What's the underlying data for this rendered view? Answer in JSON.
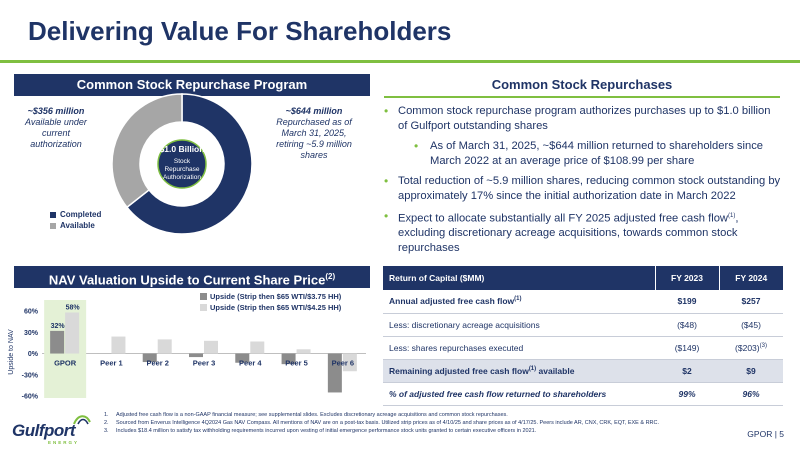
{
  "title": "Delivering Value For Shareholders",
  "repurchase_program": {
    "header": "Common Stock Repurchase Program",
    "available_note": {
      "line1": "~$356 million",
      "line2": "Available under",
      "line3": "current",
      "line4": "authorization"
    },
    "completed_note": {
      "line1": "~$644 million",
      "line2": "Repurchased as of",
      "line3": "March 31, 2025,",
      "line4": "retiring ~5.9 million",
      "line5": "shares"
    },
    "center_value": "$1.0 Billion",
    "center_line1": "Stock",
    "center_line2": "Repurchase",
    "center_line3": "Authorization",
    "legend": [
      {
        "label": "Completed",
        "color": "#1f3466"
      },
      {
        "label": "Available",
        "color": "#a6a6a6"
      }
    ],
    "donut": {
      "completed": 644,
      "available": 356
    }
  },
  "repurchases": {
    "header": "Common Stock Repurchases",
    "b1": "Common stock repurchase program authorizes purchases up to $1.0 billion of Gulfport outstanding shares",
    "b1_sub": "As of March 31, 2025, ~$644 million returned to shareholders since March 2022 at an average price of $108.99 per share",
    "b2": "Total reduction of ~5.9 million shares, reducing common stock outstanding by approximately 17% since the initial authorization date in March 2022",
    "b3_pre": "Expect to allocate substantially all FY 2025 adjusted free cash flow",
    "b3_sup": "(1)",
    "b3_post": ", excluding discretionary acreage acquisitions, towards common stock repurchases"
  },
  "nav": {
    "header": "NAV Valuation Upside to Current Share Price",
    "header_sup": "(2)"
  },
  "chart_data": {
    "type": "bar",
    "categories": [
      "GPOR",
      "Peer 1",
      "Peer 2",
      "Peer 3",
      "Peer 4",
      "Peer 5",
      "Peer 6"
    ],
    "series": [
      {
        "name": "Upside (Strip then $65 WTI/$3.75 HH)",
        "color": "#8c8c8c",
        "values": [
          32,
          0,
          -12,
          -5,
          -13,
          -15,
          -55
        ]
      },
      {
        "name": "Upside (Strip then $65 WTI/$4.25 HH)",
        "color": "#d9d9d9",
        "values": [
          58,
          24,
          20,
          18,
          17,
          6,
          -25
        ]
      }
    ],
    "ylabel": "Upside to NAV",
    "ylim": [
      -60,
      70
    ],
    "yticks": [
      "60%",
      "30%",
      "0%",
      "-30%",
      "-60%"
    ],
    "ytick_values": [
      60,
      30,
      0,
      -30,
      -60
    ],
    "data_labels": {
      "GPOR_s1": "32%",
      "GPOR_s2": "58%"
    },
    "legend_position": "top-right"
  },
  "table": {
    "headers": [
      "Return of Capital ($MM)",
      "FY 2023",
      "FY 2024"
    ],
    "rows": [
      {
        "label": "Annual adjusted free cash flow",
        "sup": "(1)",
        "fy2023": "$199",
        "fy2024": "$257",
        "fy2024_sup": ""
      },
      {
        "label": "Less: discretionary acreage acquisitions",
        "sup": "",
        "fy2023": "($48)",
        "fy2024": "($45)",
        "fy2024_sup": ""
      },
      {
        "label": "Less: shares repurchases executed",
        "sup": "",
        "fy2023": "($149)",
        "fy2024": "($203)",
        "fy2024_sup": "(3)"
      },
      {
        "label": "Remaining adjusted free cash flow",
        "sup": "(1)",
        "label_post": " available",
        "fy2023": "$2",
        "fy2024": "$9",
        "fy2024_sup": ""
      },
      {
        "label": "% of adjusted free cash flow returned to shareholders",
        "sup": "",
        "fy2023": "99%",
        "fy2024": "96%",
        "fy2024_sup": ""
      }
    ]
  },
  "footnotes": [
    {
      "n": "1.",
      "text": "Adjusted free cash flow is a non-GAAP financial measure; see supplemental slides. Excludes discretionary acreage acquisitions and common stock repurchases."
    },
    {
      "n": "2.",
      "text": "Sourced from Enverus Intelligence 4Q2024 Gas NAV Compass. All mentions of NAV are on a post-tax basis. Utilized strip prices as of 4/10/25 and share prices as of 4/17/25. Peers include AR, CNX, CRK, EQT, EXE & RRC."
    },
    {
      "n": "3.",
      "text": "Includes $18.4 million to satisfy tax withholding requirements incurred upon vesting of initial emergence performance stock units granted to certain executive officers in 2021."
    }
  ],
  "logo": {
    "name": "Gulfport",
    "sub": "ENERGY"
  },
  "page_label": "GPOR | 5",
  "colors": {
    "navy": "#1f3466",
    "green": "#7fbf40",
    "gray": "#a6a6a6"
  }
}
